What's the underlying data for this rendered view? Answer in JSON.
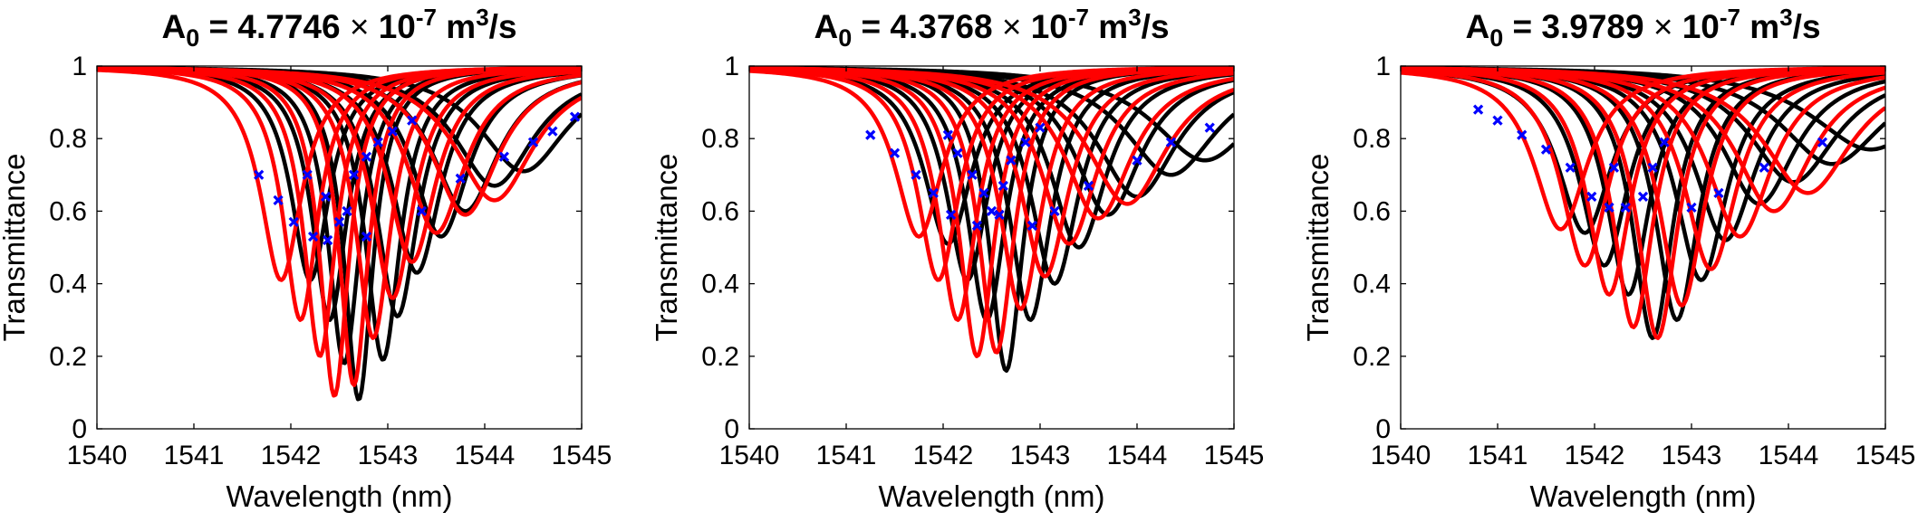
{
  "chart_data": [
    {
      "type": "line",
      "title_parts": [
        "A",
        "0",
        " = 4.7746 ",
        "×",
        " 10",
        "-7",
        " m",
        "3",
        "/s"
      ],
      "xlabel": "Wavelength (nm)",
      "ylabel": "Transmittance",
      "xlim": [
        1540,
        1545
      ],
      "ylim": [
        0,
        1
      ],
      "xticks": [
        "1540",
        "1541",
        "1542",
        "1543",
        "1544",
        "1545"
      ],
      "yticks": [
        "0",
        "0.2",
        "0.4",
        "0.6",
        "0.8",
        "1"
      ],
      "grid": false,
      "colors": {
        "measured": "#000000",
        "fit": "#ff0000",
        "marker": "#0000ff"
      },
      "series": [
        {
          "name": "measured",
          "center": 1542.2,
          "min": 0.41,
          "width": 0.24
        },
        {
          "name": "measured",
          "center": 1542.4,
          "min": 0.3,
          "width": 0.22
        },
        {
          "name": "measured",
          "center": 1542.55,
          "min": 0.18,
          "width": 0.2
        },
        {
          "name": "measured",
          "center": 1542.7,
          "min": 0.08,
          "width": 0.18
        },
        {
          "name": "measured",
          "center": 1542.95,
          "min": 0.19,
          "width": 0.22
        },
        {
          "name": "measured",
          "center": 1543.1,
          "min": 0.31,
          "width": 0.26
        },
        {
          "name": "measured",
          "center": 1543.3,
          "min": 0.43,
          "width": 0.3
        },
        {
          "name": "measured",
          "center": 1543.55,
          "min": 0.53,
          "width": 0.35
        },
        {
          "name": "measured",
          "center": 1543.8,
          "min": 0.6,
          "width": 0.42
        },
        {
          "name": "measured",
          "center": 1544.1,
          "min": 0.67,
          "width": 0.5
        },
        {
          "name": "measured",
          "center": 1544.4,
          "min": 0.71,
          "width": 0.55
        },
        {
          "name": "fit",
          "center": 1541.9,
          "min": 0.41,
          "width": 0.26
        },
        {
          "name": "fit",
          "center": 1542.1,
          "min": 0.3,
          "width": 0.22
        },
        {
          "name": "fit",
          "center": 1542.3,
          "min": 0.2,
          "width": 0.2
        },
        {
          "name": "fit",
          "center": 1542.45,
          "min": 0.09,
          "width": 0.18
        },
        {
          "name": "fit",
          "center": 1542.65,
          "min": 0.12,
          "width": 0.18
        },
        {
          "name": "fit",
          "center": 1542.85,
          "min": 0.25,
          "width": 0.22
        },
        {
          "name": "fit",
          "center": 1543.05,
          "min": 0.36,
          "width": 0.26
        },
        {
          "name": "fit",
          "center": 1543.25,
          "min": 0.46,
          "width": 0.3
        },
        {
          "name": "fit",
          "center": 1543.5,
          "min": 0.54,
          "width": 0.36
        },
        {
          "name": "fit",
          "center": 1543.8,
          "min": 0.59,
          "width": 0.42
        },
        {
          "name": "fit",
          "center": 1544.1,
          "min": 0.63,
          "width": 0.5
        }
      ],
      "markers": [
        {
          "x": 1541.67,
          "y": 0.7
        },
        {
          "x": 1541.87,
          "y": 0.63
        },
        {
          "x": 1542.03,
          "y": 0.57
        },
        {
          "x": 1542.17,
          "y": 0.7
        },
        {
          "x": 1542.23,
          "y": 0.53
        },
        {
          "x": 1542.36,
          "y": 0.64
        },
        {
          "x": 1542.38,
          "y": 0.52
        },
        {
          "x": 1542.5,
          "y": 0.57
        },
        {
          "x": 1542.58,
          "y": 0.6
        },
        {
          "x": 1542.65,
          "y": 0.7
        },
        {
          "x": 1542.78,
          "y": 0.75
        },
        {
          "x": 1542.78,
          "y": 0.53
        },
        {
          "x": 1542.9,
          "y": 0.79
        },
        {
          "x": 1543.05,
          "y": 0.82
        },
        {
          "x": 1543.25,
          "y": 0.85
        },
        {
          "x": 1543.35,
          "y": 0.6
        },
        {
          "x": 1543.75,
          "y": 0.69
        },
        {
          "x": 1544.2,
          "y": 0.75
        },
        {
          "x": 1544.5,
          "y": 0.79
        },
        {
          "x": 1544.7,
          "y": 0.82
        },
        {
          "x": 1544.93,
          "y": 0.86
        }
      ]
    },
    {
      "type": "line",
      "title_parts": [
        "A",
        "0",
        " = 4.3768 ",
        "×",
        " 10",
        "-7",
        " m",
        "3",
        "/s"
      ],
      "xlabel": "Wavelength (nm)",
      "ylabel": "Transmittance",
      "xlim": [
        1540,
        1545
      ],
      "ylim": [
        0,
        1
      ],
      "xticks": [
        "1540",
        "1541",
        "1542",
        "1543",
        "1544",
        "1545"
      ],
      "yticks": [
        "0",
        "0.2",
        "0.4",
        "0.6",
        "0.8",
        "1"
      ],
      "grid": false,
      "colors": {
        "measured": "#000000",
        "fit": "#ff0000",
        "marker": "#0000ff"
      },
      "series": [
        {
          "name": "measured",
          "center": 1542.05,
          "min": 0.51,
          "width": 0.3
        },
        {
          "name": "measured",
          "center": 1542.25,
          "min": 0.41,
          "width": 0.26
        },
        {
          "name": "measured",
          "center": 1542.45,
          "min": 0.3,
          "width": 0.24
        },
        {
          "name": "measured",
          "center": 1542.65,
          "min": 0.16,
          "width": 0.21
        },
        {
          "name": "measured",
          "center": 1542.9,
          "min": 0.3,
          "width": 0.26
        },
        {
          "name": "measured",
          "center": 1543.15,
          "min": 0.4,
          "width": 0.3
        },
        {
          "name": "measured",
          "center": 1543.4,
          "min": 0.5,
          "width": 0.35
        },
        {
          "name": "measured",
          "center": 1543.7,
          "min": 0.59,
          "width": 0.42
        },
        {
          "name": "measured",
          "center": 1544.0,
          "min": 0.64,
          "width": 0.5
        },
        {
          "name": "measured",
          "center": 1544.35,
          "min": 0.7,
          "width": 0.58
        },
        {
          "name": "measured",
          "center": 1544.7,
          "min": 0.74,
          "width": 0.65
        },
        {
          "name": "fit",
          "center": 1541.75,
          "min": 0.53,
          "width": 0.3
        },
        {
          "name": "fit",
          "center": 1541.95,
          "min": 0.41,
          "width": 0.26
        },
        {
          "name": "fit",
          "center": 1542.15,
          "min": 0.3,
          "width": 0.24
        },
        {
          "name": "fit",
          "center": 1542.35,
          "min": 0.2,
          "width": 0.22
        },
        {
          "name": "fit",
          "center": 1542.55,
          "min": 0.21,
          "width": 0.22
        },
        {
          "name": "fit",
          "center": 1542.8,
          "min": 0.33,
          "width": 0.26
        },
        {
          "name": "fit",
          "center": 1543.05,
          "min": 0.42,
          "width": 0.3
        },
        {
          "name": "fit",
          "center": 1543.3,
          "min": 0.51,
          "width": 0.35
        },
        {
          "name": "fit",
          "center": 1543.6,
          "min": 0.58,
          "width": 0.42
        },
        {
          "name": "fit",
          "center": 1543.9,
          "min": 0.62,
          "width": 0.5
        }
      ],
      "markers": [
        {
          "x": 1541.25,
          "y": 0.81
        },
        {
          "x": 1541.5,
          "y": 0.76
        },
        {
          "x": 1541.72,
          "y": 0.7
        },
        {
          "x": 1541.9,
          "y": 0.65
        },
        {
          "x": 1542.05,
          "y": 0.81
        },
        {
          "x": 1542.08,
          "y": 0.59
        },
        {
          "x": 1542.15,
          "y": 0.76
        },
        {
          "x": 1542.3,
          "y": 0.7
        },
        {
          "x": 1542.35,
          "y": 0.56
        },
        {
          "x": 1542.42,
          "y": 0.65
        },
        {
          "x": 1542.5,
          "y": 0.6
        },
        {
          "x": 1542.58,
          "y": 0.59
        },
        {
          "x": 1542.62,
          "y": 0.67
        },
        {
          "x": 1542.7,
          "y": 0.74
        },
        {
          "x": 1542.85,
          "y": 0.79
        },
        {
          "x": 1542.92,
          "y": 0.56
        },
        {
          "x": 1543.0,
          "y": 0.83
        },
        {
          "x": 1543.15,
          "y": 0.6
        },
        {
          "x": 1543.5,
          "y": 0.67
        },
        {
          "x": 1544.0,
          "y": 0.74
        },
        {
          "x": 1544.35,
          "y": 0.79
        },
        {
          "x": 1544.75,
          "y": 0.83
        }
      ]
    },
    {
      "type": "line",
      "title_parts": [
        "A",
        "0",
        " = 3.9789 ",
        "×",
        " 10",
        "-7",
        " m",
        "3",
        "/s"
      ],
      "xlabel": "Wavelength (nm)",
      "ylabel": "Transmittance",
      "xlim": [
        1540,
        1545
      ],
      "ylim": [
        0,
        1
      ],
      "xticks": [
        "1540",
        "1541",
        "1542",
        "1543",
        "1544",
        "1545"
      ],
      "yticks": [
        "0",
        "0.2",
        "0.4",
        "0.6",
        "0.8",
        "1"
      ],
      "grid": false,
      "colors": {
        "measured": "#000000",
        "fit": "#ff0000",
        "marker": "#0000ff"
      },
      "series": [
        {
          "name": "measured",
          "center": 1541.9,
          "min": 0.54,
          "width": 0.34
        },
        {
          "name": "measured",
          "center": 1542.1,
          "min": 0.45,
          "width": 0.3
        },
        {
          "name": "measured",
          "center": 1542.35,
          "min": 0.37,
          "width": 0.27
        },
        {
          "name": "measured",
          "center": 1542.6,
          "min": 0.25,
          "width": 0.25
        },
        {
          "name": "measured",
          "center": 1542.85,
          "min": 0.3,
          "width": 0.27
        },
        {
          "name": "measured",
          "center": 1543.1,
          "min": 0.41,
          "width": 0.32
        },
        {
          "name": "measured",
          "center": 1543.35,
          "min": 0.52,
          "width": 0.38
        },
        {
          "name": "measured",
          "center": 1543.7,
          "min": 0.62,
          "width": 0.46
        },
        {
          "name": "measured",
          "center": 1544.05,
          "min": 0.68,
          "width": 0.55
        },
        {
          "name": "measured",
          "center": 1544.45,
          "min": 0.73,
          "width": 0.65
        },
        {
          "name": "measured",
          "center": 1544.85,
          "min": 0.77,
          "width": 0.75
        },
        {
          "name": "fit",
          "center": 1541.65,
          "min": 0.55,
          "width": 0.34
        },
        {
          "name": "fit",
          "center": 1541.9,
          "min": 0.45,
          "width": 0.3
        },
        {
          "name": "fit",
          "center": 1542.15,
          "min": 0.37,
          "width": 0.27
        },
        {
          "name": "fit",
          "center": 1542.4,
          "min": 0.28,
          "width": 0.25
        },
        {
          "name": "fit",
          "center": 1542.65,
          "min": 0.25,
          "width": 0.25
        },
        {
          "name": "fit",
          "center": 1542.9,
          "min": 0.34,
          "width": 0.28
        },
        {
          "name": "fit",
          "center": 1543.2,
          "min": 0.44,
          "width": 0.33
        },
        {
          "name": "fit",
          "center": 1543.5,
          "min": 0.53,
          "width": 0.4
        },
        {
          "name": "fit",
          "center": 1543.85,
          "min": 0.6,
          "width": 0.48
        },
        {
          "name": "fit",
          "center": 1544.2,
          "min": 0.65,
          "width": 0.56
        }
      ],
      "markers": [
        {
          "x": 1540.8,
          "y": 0.88
        },
        {
          "x": 1541.0,
          "y": 0.85
        },
        {
          "x": 1541.25,
          "y": 0.81
        },
        {
          "x": 1541.5,
          "y": 0.77
        },
        {
          "x": 1541.75,
          "y": 0.72
        },
        {
          "x": 1541.97,
          "y": 0.64
        },
        {
          "x": 1542.15,
          "y": 0.61
        },
        {
          "x": 1542.2,
          "y": 0.72
        },
        {
          "x": 1542.32,
          "y": 0.61
        },
        {
          "x": 1542.5,
          "y": 0.64
        },
        {
          "x": 1542.6,
          "y": 0.72
        },
        {
          "x": 1542.72,
          "y": 0.79
        },
        {
          "x": 1543.0,
          "y": 0.61
        },
        {
          "x": 1543.28,
          "y": 0.65
        },
        {
          "x": 1543.75,
          "y": 0.72
        },
        {
          "x": 1544.35,
          "y": 0.79
        }
      ]
    }
  ]
}
